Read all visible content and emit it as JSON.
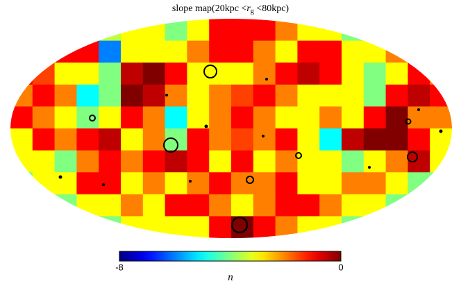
{
  "chart_data": {
    "type": "heatmap",
    "projection": "mollweide",
    "colormap": "jet",
    "title": "slope map(20kpc <",
    "title_var": "r",
    "title_sub": "g",
    "title_end": " <80kpc)",
    "colorbar_label": "n",
    "clim": [
      -8,
      0
    ],
    "cticks": [
      -8,
      0
    ],
    "z": [
      [
        -4,
        -4,
        -4,
        -4,
        -3.5,
        -3,
        -3,
        -4,
        -3,
        -1,
        -1,
        -1,
        -2,
        -3,
        -3,
        -4,
        -4,
        -4,
        -4,
        -4
      ],
      [
        -2,
        -3,
        -1,
        -1,
        -6,
        -3,
        -3,
        -3,
        -2,
        -1,
        -1,
        -2,
        -3,
        -1,
        -1,
        -3,
        -3,
        -2,
        -1,
        -3
      ],
      [
        -1,
        -1.5,
        -3,
        -3,
        -4,
        -0.5,
        0,
        -1,
        -3,
        -3,
        -3,
        -2,
        -1,
        -0.5,
        -1,
        -3,
        -4,
        -3,
        -1,
        -2
      ],
      [
        -2,
        -1,
        -2,
        -5,
        -4,
        0,
        -0.5,
        -2,
        -3,
        -2,
        -1.5,
        -1,
        -2,
        -3,
        -3,
        -3,
        -4,
        -1,
        -0.5,
        -1
      ],
      [
        -1,
        -2,
        -3,
        -4,
        -3,
        -1,
        -2,
        -5,
        -3,
        -2,
        -1,
        -2,
        -3,
        -3,
        -2,
        -3,
        -1,
        0,
        -2,
        -2
      ],
      [
        -3,
        -1,
        -2,
        -1,
        -0.5,
        -3,
        -2,
        -4,
        -1,
        -2,
        -1.5,
        -2,
        -1,
        -3,
        -5,
        -0.5,
        0,
        0,
        -1,
        -3
      ],
      [
        -3,
        -3,
        -4,
        -2,
        -1,
        -2,
        -1,
        -0.5,
        -1,
        -3,
        -1,
        -3,
        -2,
        -3,
        -3,
        -4,
        -3,
        -2,
        -0.5,
        -3
      ],
      [
        -4,
        -3,
        -3,
        -1,
        -1,
        -3,
        -2,
        -3,
        -2,
        -1,
        -2,
        -2,
        -1,
        -3,
        -3,
        -2,
        -2,
        -3,
        -4,
        -4
      ],
      [
        -4,
        -4,
        -4,
        -3,
        -3,
        -2,
        -3,
        -1,
        -1,
        -2,
        -3,
        -2,
        -1,
        -1,
        -2,
        -3,
        -3,
        -4,
        -4,
        -4
      ],
      [
        -4,
        -4,
        -4,
        -4,
        -4,
        -3,
        -3,
        -3,
        -3,
        -1,
        0,
        -1,
        -2,
        -3,
        -3,
        -4,
        -4,
        -4,
        -4,
        -4
      ]
    ]
  }
}
